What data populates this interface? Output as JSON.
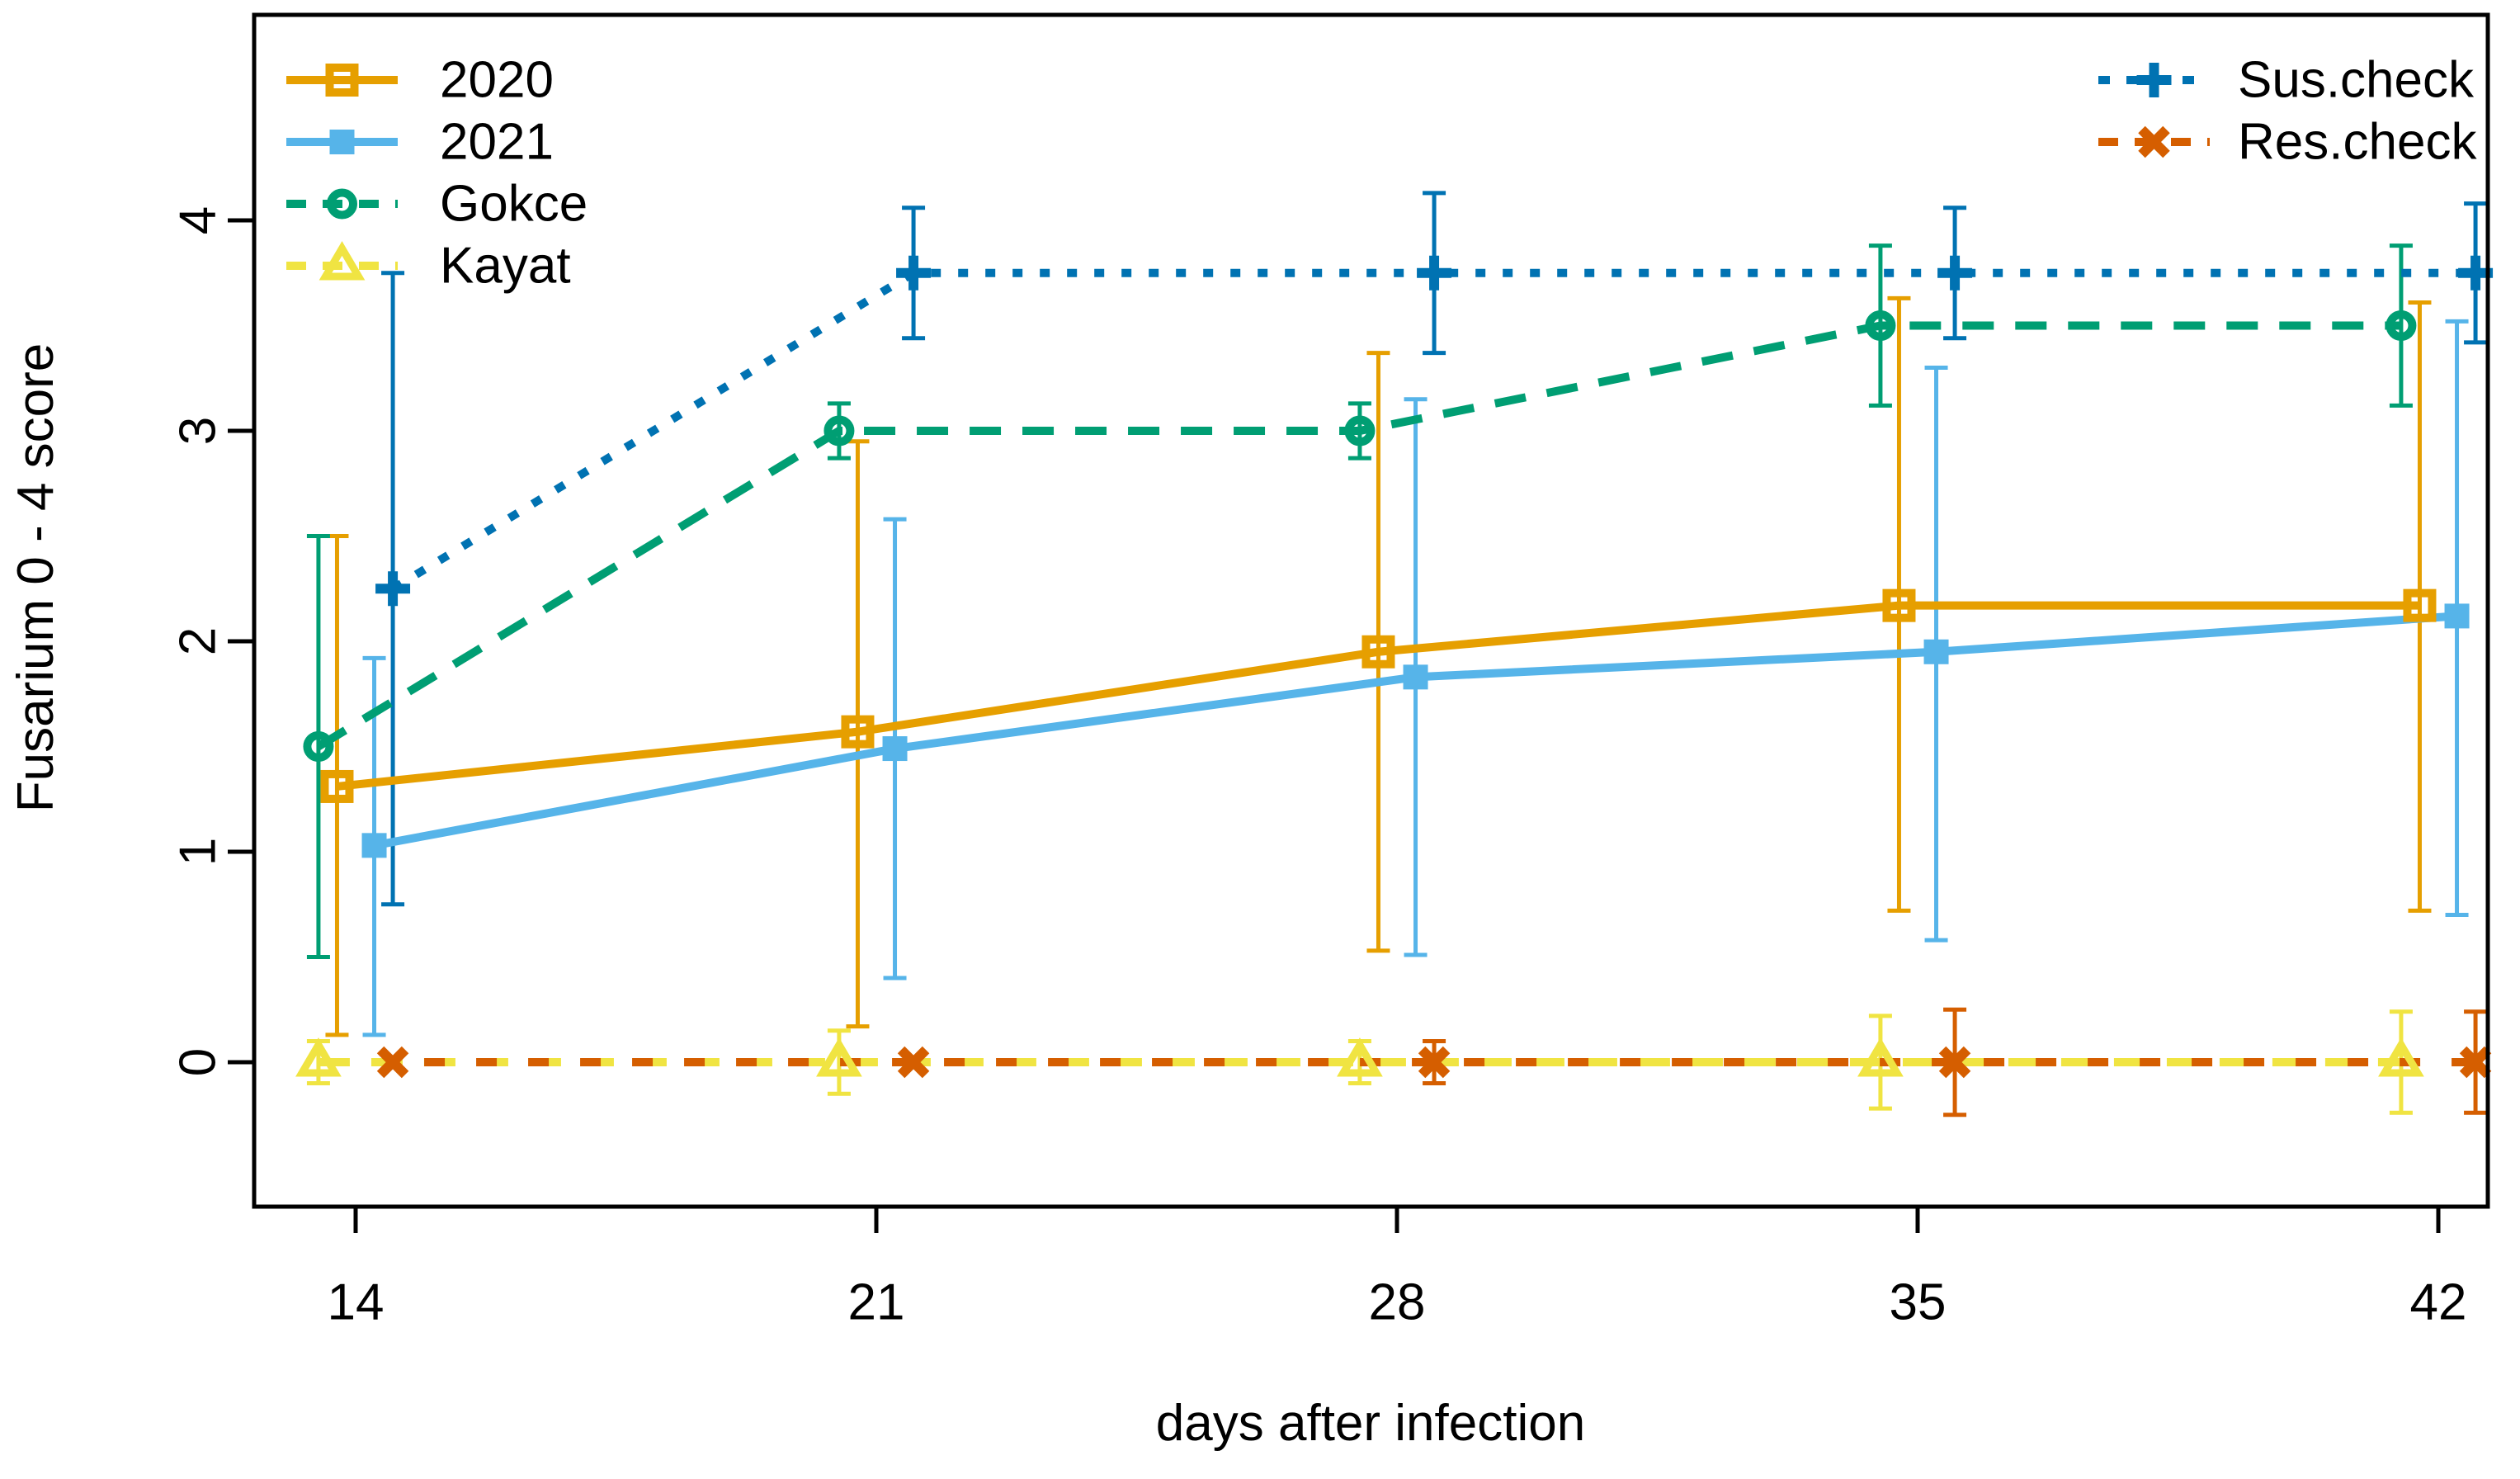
{
  "chart_data": {
    "type": "line",
    "title": "",
    "xlabel": "days after infection",
    "ylabel": "Fusarium 0 - 4 score",
    "x": [
      14,
      21,
      28,
      35,
      42
    ],
    "x_tick_labels": [
      "14",
      "21",
      "28",
      "35",
      "42"
    ],
    "y_ticks": [
      0,
      1,
      2,
      3,
      4
    ],
    "y_tick_labels": [
      "0",
      "1",
      "2",
      "3",
      "4"
    ],
    "xlim": [
      12.6,
      43.4
    ],
    "ylim": [
      -0.69,
      4.98
    ],
    "grid": false,
    "background": "#FFFFFF",
    "axis_color": "#000000",
    "error_bars": true,
    "series": [
      {
        "name": "2020",
        "color": "#E69F00",
        "linestyle": "solid",
        "marker": "open-square",
        "x_offset_days": -0.25,
        "values": [
          1.31,
          1.57,
          1.95,
          2.17,
          2.17
        ],
        "err_low": [
          0.13,
          0.17,
          0.53,
          0.72,
          0.72
        ],
        "err_high": [
          2.5,
          2.95,
          3.37,
          3.63,
          3.61
        ],
        "legend": "left"
      },
      {
        "name": "2021",
        "color": "#56B4E9",
        "linestyle": "solid",
        "marker": "filled-square",
        "x_offset_days": 0.25,
        "values": [
          1.03,
          1.49,
          1.83,
          1.95,
          2.12
        ],
        "err_low": [
          0.13,
          0.4,
          0.51,
          0.58,
          0.7
        ],
        "err_high": [
          1.92,
          2.58,
          3.15,
          3.3,
          3.52
        ],
        "legend": "left"
      },
      {
        "name": "Gokce",
        "color": "#009E73",
        "linestyle": "dashed",
        "marker": "open-circle",
        "x_offset_days": -0.5,
        "values": [
          1.5,
          3.0,
          3.0,
          3.5,
          3.5
        ],
        "err_low": [
          0.5,
          2.87,
          2.87,
          3.12,
          3.12
        ],
        "err_high": [
          2.5,
          3.13,
          3.13,
          3.88,
          3.88
        ],
        "legend": "left"
      },
      {
        "name": "Kayat",
        "color": "#F0E442",
        "linestyle": "dashed",
        "marker": "open-triangle",
        "x_offset_days": -0.5,
        "values": [
          0,
          0,
          0,
          0,
          0
        ],
        "err_low": [
          -0.1,
          -0.15,
          -0.1,
          -0.22,
          -0.24
        ],
        "err_high": [
          0.1,
          0.15,
          0.1,
          0.22,
          0.24
        ],
        "legend": "left"
      },
      {
        "name": "Sus.check",
        "color": "#0072B2",
        "linestyle": "dotted",
        "marker": "plus",
        "x_offset_days": 0.5,
        "values": [
          2.25,
          3.75,
          3.75,
          3.75,
          3.75
        ],
        "err_low": [
          0.75,
          3.44,
          3.37,
          3.44,
          3.42
        ],
        "err_high": [
          3.75,
          4.06,
          4.13,
          4.06,
          4.08
        ],
        "legend": "right"
      },
      {
        "name": "Res.check",
        "color": "#D55E00",
        "linestyle": "dash-interleave",
        "marker": "x",
        "x_offset_days": 0.5,
        "values": [
          0,
          0,
          0,
          0,
          0
        ],
        "err_low": [
          0,
          0,
          -0.1,
          -0.25,
          -0.24
        ],
        "err_high": [
          0,
          0,
          0.1,
          0.25,
          0.24
        ],
        "legend": "right"
      }
    ],
    "legend_left": {
      "items": [
        "2020",
        "2021",
        "Gokce",
        "Kayat"
      ]
    },
    "legend_right": {
      "items": [
        "Sus.check",
        "Res.check"
      ]
    },
    "legend_position": "top-left and top-right, no border"
  }
}
